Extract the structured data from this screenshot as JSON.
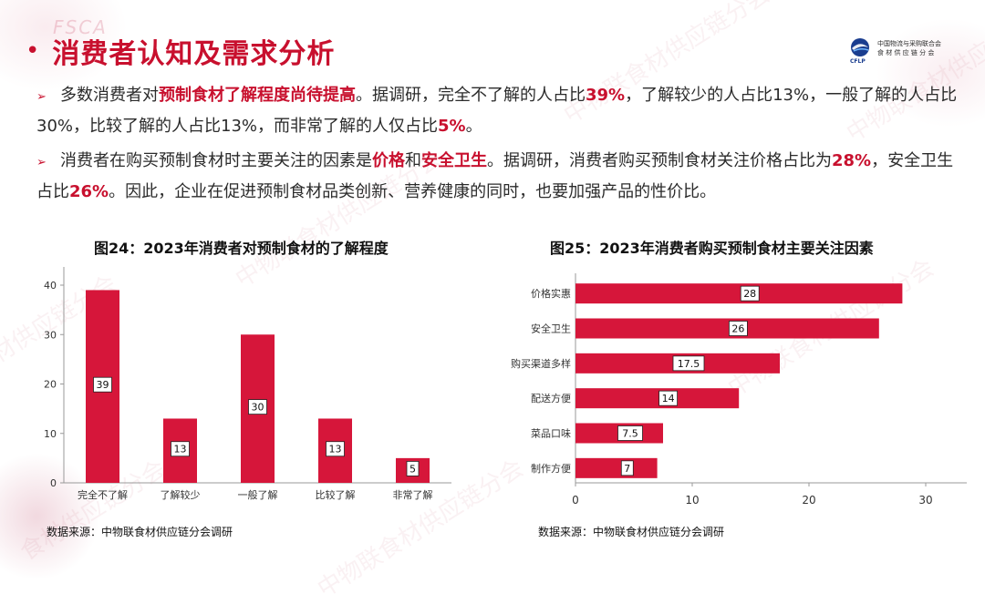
{
  "header": {
    "title": "消费者认知及需求分析",
    "watermark_top": "FSCA",
    "logo_line1": "中国物流与采购联合会",
    "logo_line2": "食 材 供 应 链 分 会",
    "logo_abbr": "CFLP"
  },
  "paragraphs": [
    {
      "segments": [
        {
          "t": "多数消费者对",
          "hl": false
        },
        {
          "t": "预制食材了解程度尚待提高",
          "hl": true
        },
        {
          "t": "。据调研，完全不了解的人占比",
          "hl": false
        },
        {
          "t": "39%",
          "hl": true
        },
        {
          "t": "，了解较少的人占比13%，一般了解的人占比30%，比较了解的人占比13%，而非常了解的人仅占比",
          "hl": false
        },
        {
          "t": "5%",
          "hl": true
        },
        {
          "t": "。",
          "hl": false
        }
      ]
    },
    {
      "segments": [
        {
          "t": "消费者在购买预制食材时主要关注的因素是",
          "hl": false
        },
        {
          "t": "价格",
          "hl": true
        },
        {
          "t": "和",
          "hl": false
        },
        {
          "t": "安全卫生",
          "hl": true
        },
        {
          "t": "。据调研，消费者购买预制食材关注价格占比为",
          "hl": false
        },
        {
          "t": "28%",
          "hl": true
        },
        {
          "t": "，安全卫生占比",
          "hl": false
        },
        {
          "t": "26%",
          "hl": true
        },
        {
          "t": "。因此，企业在促进预制食材品类创新、营养健康的同时，也要加强产品的性价比。",
          "hl": false
        }
      ]
    }
  ],
  "colors": {
    "accent": "#c8102e",
    "bar": "#d6163a"
  },
  "chart_data": [
    {
      "type": "bar",
      "title": "图24：2023年消费者对预制食材的了解程度",
      "categories": [
        "完全不了解",
        "了解较少",
        "一般了解",
        "比较了解",
        "非常了解"
      ],
      "values": [
        39,
        13,
        30,
        13,
        5
      ],
      "ylim": [
        0,
        40
      ],
      "yticks": [
        0,
        10,
        20,
        30,
        40
      ],
      "grid": false,
      "source": "数据来源：中物联食材供应链分会调研"
    },
    {
      "type": "bar",
      "orientation": "horizontal",
      "title": "图25：2023年消费者购买预制食材主要关注因素",
      "categories": [
        "价格实惠",
        "安全卫生",
        "购买渠道多样",
        "配送方便",
        "菜品口味",
        "制作方便"
      ],
      "values": [
        28,
        26,
        17.5,
        14,
        7.5,
        7
      ],
      "xlim": [
        0,
        30
      ],
      "xticks": [
        0,
        10,
        20,
        30
      ],
      "grid": false,
      "source": "数据来源：中物联食材供应链分会调研"
    }
  ],
  "watermarks": [
    "中物联食材供应链分会",
    "中物联食材供应链分会",
    "中物联食材供应链分会",
    "中物联食材供应链分会",
    "材供应链分会",
    "食材供应链分会",
    "中物联食材供应链分会"
  ]
}
